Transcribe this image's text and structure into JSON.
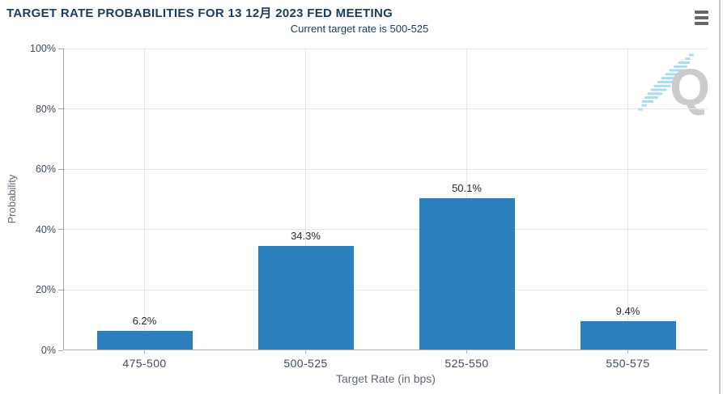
{
  "header": {
    "title": "TARGET RATE PROBABILITIES FOR 13 12月 2023 FED MEETING",
    "subtitle": "Current target rate is 500-525",
    "menu_icon": "hamburger-menu-icon"
  },
  "watermark": {
    "letter": "Q"
  },
  "colors": {
    "bar": "#2b7fbd",
    "title_text": "#1b3b5e",
    "tick_text": "#3d4d60",
    "axis_title_text": "#5d6a75",
    "gridline": "#e6e6e6",
    "watermark_letter": "#cbcbcb",
    "watermark_dashes": "#a9dcf2",
    "menu_icon": "#666666"
  },
  "chart_data": {
    "type": "bar",
    "title": "TARGET RATE PROBABILITIES FOR 13 12月 2023 FED MEETING",
    "subtitle": "Current target rate is 500-525",
    "categories": [
      "475-500",
      "500-525",
      "525-550",
      "550-575"
    ],
    "values": [
      6.2,
      34.3,
      50.1,
      9.4
    ],
    "bar_labels": [
      "6.2%",
      "34.3%",
      "50.1%",
      "9.4%"
    ],
    "xlabel": "Target Rate (in bps)",
    "ylabel": "Probability",
    "ylim": [
      0,
      100
    ],
    "yticks": [
      "0%",
      "20%",
      "40%",
      "60%",
      "80%",
      "100%"
    ],
    "grid": true,
    "legend": "none",
    "bar_color": "#2b7fbd"
  }
}
